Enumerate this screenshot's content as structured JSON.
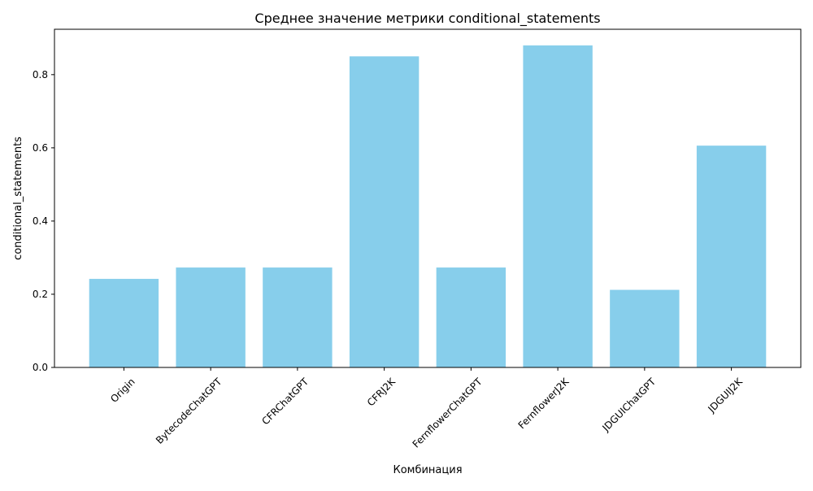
{
  "chart_data": {
    "type": "bar",
    "title": "Среднее значение метрики conditional_statements",
    "xlabel": "Комбинация",
    "ylabel": "conditional_statements",
    "categories": [
      "Origin",
      "BytecodeChatGPT",
      "CFRChatGPT",
      "CFRJ2K",
      "FernflowerChatGPT",
      "FernflowerJ2K",
      "JDGUIChatGPT",
      "JDGUIJ2K"
    ],
    "values": [
      0.242,
      0.273,
      0.273,
      0.85,
      0.273,
      0.88,
      0.212,
      0.606
    ],
    "yticks": [
      0.0,
      0.2,
      0.4,
      0.6,
      0.8
    ],
    "ytick_labels": [
      "0.0",
      "0.2",
      "0.4",
      "0.6",
      "0.8"
    ],
    "ylim": [
      0,
      0.924
    ],
    "grid": false,
    "legend": "none",
    "colors": {
      "bar": "#87ceeb",
      "axis": "#000000"
    }
  }
}
